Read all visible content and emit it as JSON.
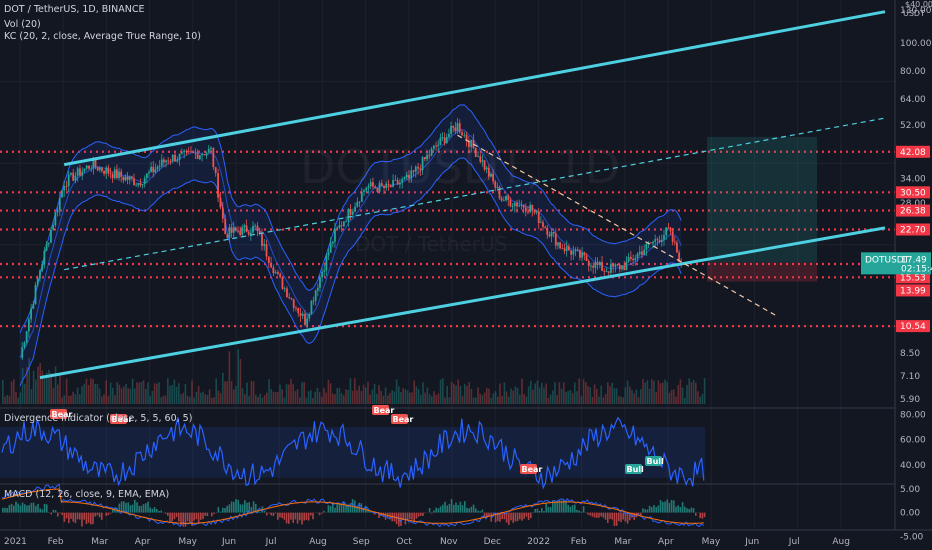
{
  "header": {
    "title": "DOT / TetherUS, 1D, BINANCE",
    "indicator_vol": "Vol (20)",
    "indicator_kc": "KC (20, 2, close, Average True Range, 10)",
    "indicator_div": "Divergence Indicator (close, 5, 5, 60, 5)",
    "indicator_macd": "MACD (12, 26, close, 9, EMA, EMA)",
    "currency": "USDT",
    "watermark": "DOTUSDT, 1D",
    "watermark_sub": "DOT / TetherUS"
  },
  "price_axis": {
    "ticks": [
      "130.00",
      "100.00",
      "80.00",
      "64.00",
      "52.00",
      "42.08",
      "34.00",
      "30.50",
      "28.00",
      "26.38",
      "22.70",
      "17.49",
      "17.44",
      "17.26",
      "15.53",
      "13.99",
      "10.54",
      "8.50",
      "7.10",
      "5.90"
    ],
    "top_label": "$40.00",
    "current_price": "17.49",
    "countdown": "02:15:48",
    "badges": [
      {
        "text": "47.36",
        "color": "#26a69a"
      },
      {
        "text": "42.08",
        "color": "#f23645"
      },
      {
        "text": "30.50",
        "color": "#f23645"
      },
      {
        "text": "26.38",
        "color": "#f23645"
      },
      {
        "text": "22.70",
        "color": "#f23645"
      },
      {
        "text": "17.44",
        "color": "#f23645"
      },
      {
        "text": "17.26",
        "color": "#f23645"
      },
      {
        "text": "15.53",
        "color": "#f23645"
      },
      {
        "text": "13.99",
        "color": "#f23645"
      },
      {
        "text": "10.54",
        "color": "#f23645"
      }
    ]
  },
  "osc_axis": {
    "ticks": [
      "80.00",
      "60.00",
      "40.00"
    ]
  },
  "macd_axis": {
    "ticks": [
      "5.00",
      "0.00",
      "-5.00"
    ]
  },
  "time_axis": {
    "labels": [
      "2021",
      "Feb",
      "Mar",
      "Apr",
      "May",
      "Jun",
      "Jul",
      "Aug",
      "Sep",
      "Oct",
      "Nov",
      "Dec",
      "2022",
      "Feb",
      "Mar",
      "Apr",
      "May",
      "Jun",
      "Jul",
      "Aug"
    ]
  },
  "divergence_labels": [
    "Bear",
    "Bear",
    "Bear",
    "Bear",
    "Bear",
    "Bull",
    "Bull",
    "Bull"
  ],
  "colors": {
    "background": "#131722",
    "channel": "#4dd0e1",
    "level": "#f23645",
    "bull": "#26a69a",
    "bear": "#ef5350",
    "keltner": "#2962ff",
    "rsi": "#2962ff",
    "macd": "#2962ff",
    "signal": "#ff6d00"
  },
  "chart_data": [
    {
      "type": "line",
      "title": "DOT / TetherUS, 1D, BINANCE",
      "price_scale": "log",
      "ylim": [
        5.5,
        135
      ],
      "x": [
        "2021-01-01",
        "2021-01-15",
        "2021-02-01",
        "2021-02-20",
        "2021-03-10",
        "2021-03-25",
        "2021-04-15",
        "2021-05-01",
        "2021-05-15",
        "2021-05-25",
        "2021-06-15",
        "2021-07-01",
        "2021-07-20",
        "2021-08-10",
        "2021-09-01",
        "2021-09-15",
        "2021-10-01",
        "2021-10-20",
        "2021-11-04",
        "2021-11-20",
        "2021-12-05",
        "2021-12-25",
        "2022-01-15",
        "2022-02-01",
        "2022-02-15",
        "2022-03-01",
        "2022-03-15",
        "2022-04-01",
        "2022-04-10"
      ],
      "series": [
        {
          "values": [
            8.2,
            16.5,
            33.0,
            38.0,
            35.0,
            33.0,
            40.0,
            41.0,
            42.5,
            22.0,
            23.0,
            15.5,
            11.0,
            22.0,
            32.0,
            31.5,
            34.0,
            44.0,
            52.0,
            40.0,
            29.0,
            27.0,
            20.0,
            18.0,
            16.5,
            17.0,
            19.5,
            22.5,
            17.49
          ]
        }
      ],
      "horizontal_levels": [
        42.08,
        30.5,
        26.38,
        22.7,
        17.26,
        15.53,
        10.54
      ],
      "channel": [
        {
          "from": [
            "2021-02-01",
            38.0
          ],
          "to": [
            "2022-08-31",
            128.0
          ]
        },
        {
          "from": [
            "2021-01-15",
            7.0
          ],
          "to": [
            "2022-08-31",
            23.0
          ]
        }
      ]
    },
    {
      "type": "bar",
      "title": "Vol (20)"
    },
    {
      "type": "line",
      "title": "Divergence Indicator (close, 5, 5, 60, 5)",
      "ylim": [
        25,
        85
      ]
    },
    {
      "type": "line",
      "title": "MACD (12, 26, close, 9, EMA, EMA)",
      "ylim": [
        -7,
        6
      ]
    }
  ]
}
